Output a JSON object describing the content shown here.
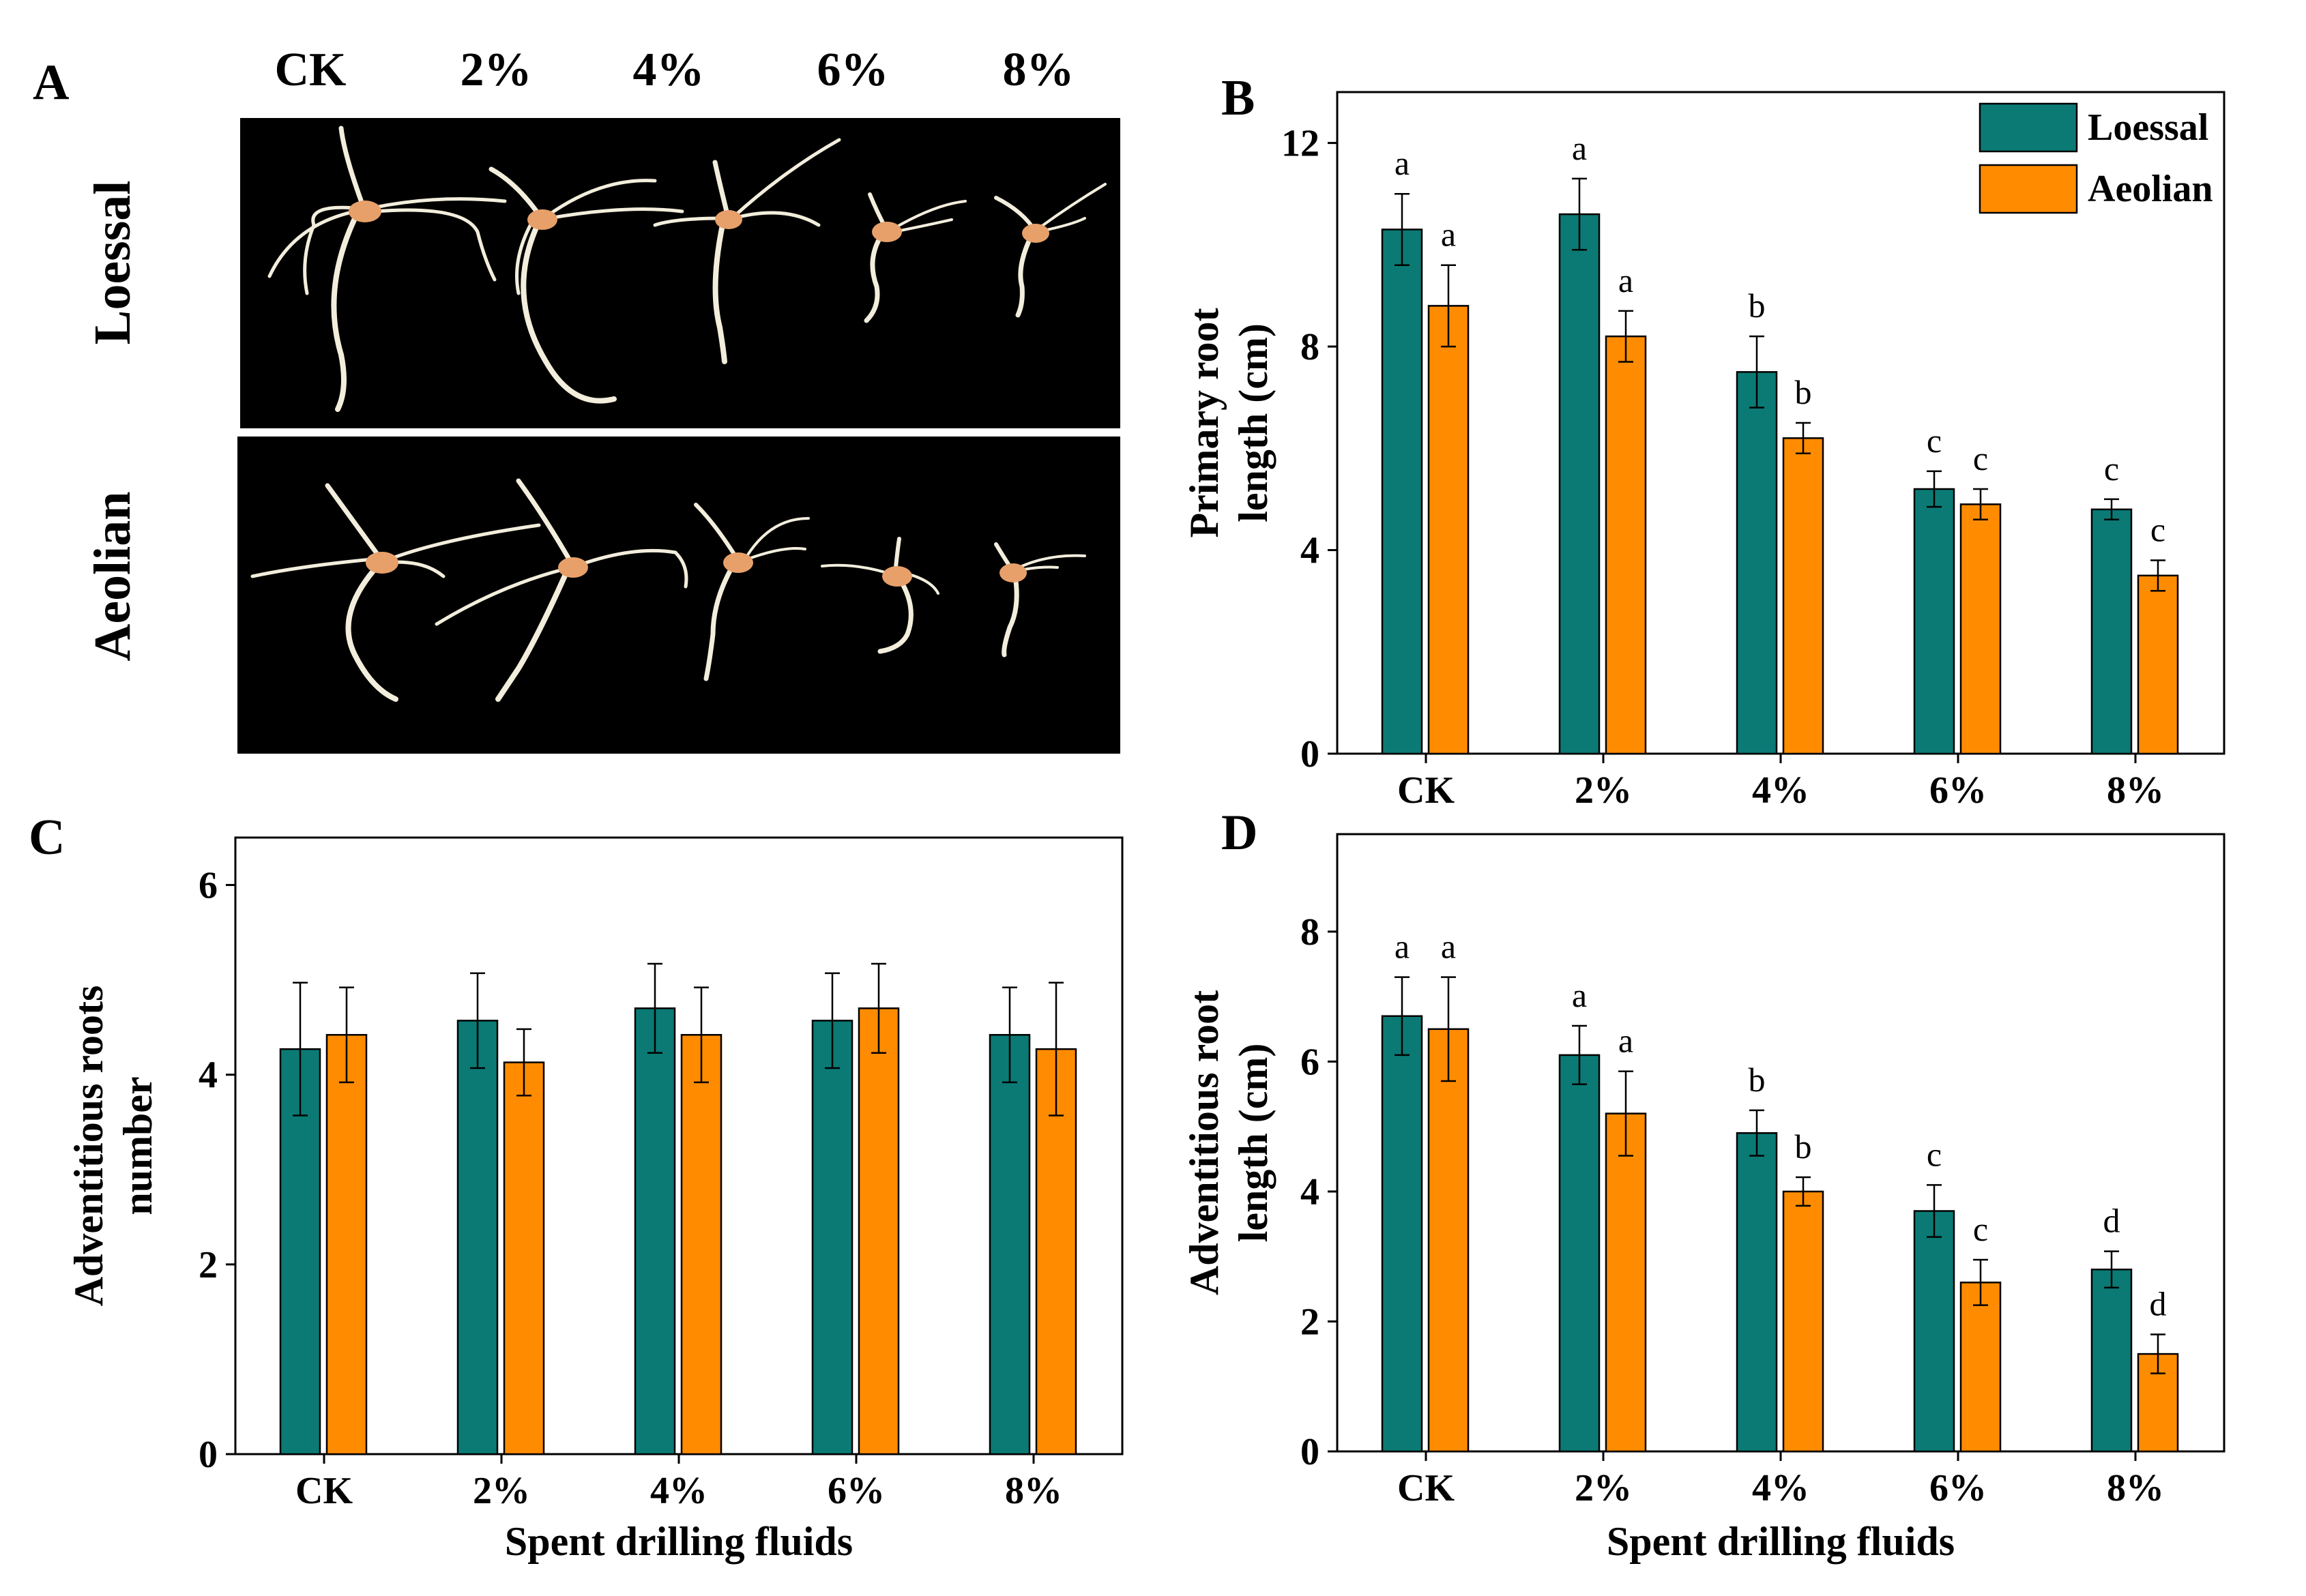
{
  "colors": {
    "loessal": "#0B7A75",
    "aeolian": "#FF8C00",
    "photo_bg": "#000000",
    "root": "#F3EEDC",
    "seed": "#E7A06A"
  },
  "panel_a": {
    "letter": "A",
    "columns": [
      "CK",
      "2%",
      "4%",
      "6%",
      "8%"
    ],
    "rows": [
      "Loessal",
      "Aeolian"
    ]
  },
  "legend": [
    "Loessal",
    "Aeolian"
  ],
  "chart_data": [
    {
      "panel": "B",
      "type": "bar",
      "categories": [
        "CK",
        "2%",
        "4%",
        "6%",
        "8%"
      ],
      "xlabel": "",
      "ylabel_lines": [
        "Primary root",
        "length (cm)"
      ],
      "ylim": [
        0,
        13
      ],
      "yticks": [
        0,
        4,
        8,
        12
      ],
      "legend": true,
      "series": [
        {
          "name": "Loessal",
          "values": [
            10.3,
            10.6,
            7.5,
            5.2,
            4.8
          ],
          "errors": [
            0.7,
            0.7,
            0.7,
            0.35,
            0.2
          ],
          "letters": [
            "a",
            "a",
            "b",
            "c",
            "c"
          ]
        },
        {
          "name": "Aeolian",
          "values": [
            8.8,
            8.2,
            6.2,
            4.9,
            3.5
          ],
          "errors": [
            0.8,
            0.5,
            0.3,
            0.3,
            0.3
          ],
          "letters": [
            "a",
            "a",
            "b",
            "c",
            "c"
          ]
        }
      ]
    },
    {
      "panel": "C",
      "type": "bar",
      "categories": [
        "CK",
        "2%",
        "4%",
        "6%",
        "8%"
      ],
      "xlabel": "Spent drilling fluids",
      "ylabel_lines": [
        "Adventitious roots",
        "number"
      ],
      "ylim": [
        0,
        6.5
      ],
      "yticks": [
        0,
        2,
        4,
        6
      ],
      "legend": false,
      "series": [
        {
          "name": "Loessal",
          "values": [
            4.27,
            4.57,
            4.7,
            4.57,
            4.42
          ],
          "errors": [
            0.7,
            0.5,
            0.47,
            0.5,
            0.5
          ],
          "letters": []
        },
        {
          "name": "Aeolian",
          "values": [
            4.42,
            4.13,
            4.42,
            4.7,
            4.27
          ],
          "errors": [
            0.5,
            0.35,
            0.5,
            0.47,
            0.7
          ],
          "letters": []
        }
      ]
    },
    {
      "panel": "D",
      "type": "bar",
      "categories": [
        "CK",
        "2%",
        "4%",
        "6%",
        "8%"
      ],
      "xlabel": "Spent drilling fluids",
      "ylabel_lines": [
        "Adventitious root",
        "length (cm)"
      ],
      "ylim": [
        0,
        9.5
      ],
      "yticks": [
        0,
        2,
        4,
        6,
        8
      ],
      "legend": false,
      "series": [
        {
          "name": "Loessal",
          "values": [
            6.7,
            6.1,
            4.9,
            3.7,
            2.8
          ],
          "errors": [
            0.6,
            0.45,
            0.35,
            0.4,
            0.28
          ],
          "letters": [
            "a",
            "a",
            "b",
            "c",
            "d"
          ]
        },
        {
          "name": "Aeolian",
          "values": [
            6.5,
            5.2,
            4.0,
            2.6,
            1.5
          ],
          "errors": [
            0.8,
            0.65,
            0.22,
            0.35,
            0.3
          ],
          "letters": [
            "a",
            "a",
            "b",
            "c",
            "d"
          ]
        }
      ]
    }
  ]
}
